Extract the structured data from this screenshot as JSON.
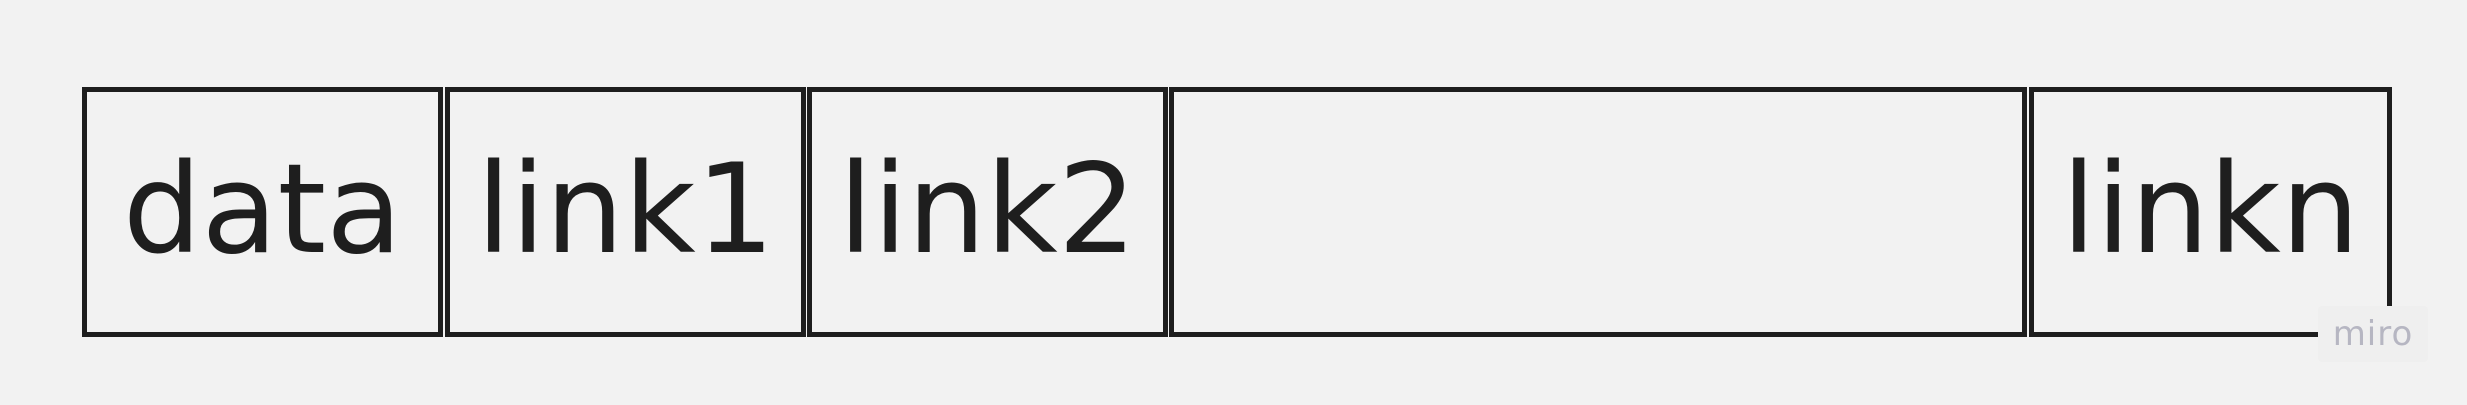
{
  "diagram": {
    "cells": [
      {
        "label": "data"
      },
      {
        "label": "link1"
      },
      {
        "label": "link2"
      },
      {
        "label": ""
      },
      {
        "label": "linkn"
      }
    ]
  },
  "watermark": {
    "text": "miro"
  },
  "colors": {
    "background": "#f2f2f2",
    "stroke": "#1e1e1e",
    "watermark": "#b6b6c2"
  }
}
